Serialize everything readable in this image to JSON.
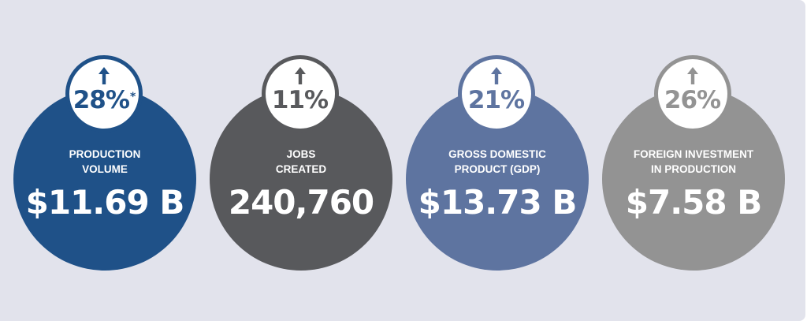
{
  "stats": [
    {
      "change_pct": "28%",
      "footnote_marker": "*",
      "label_line1": "PRODUCTION",
      "label_line2": "VOLUME",
      "value": "$11.69 B",
      "color": "#1f5188",
      "icon": "arrow-up-icon"
    },
    {
      "change_pct": "11%",
      "footnote_marker": "",
      "label_line1": "JOBS",
      "label_line2": "CREATED",
      "value": "240,760",
      "color": "#58595c",
      "icon": "arrow-up-icon"
    },
    {
      "change_pct": "21%",
      "footnote_marker": "",
      "label_line1": "GROSS DOMESTIC",
      "label_line2": "PRODUCT (GDP)",
      "value": "$13.73 B",
      "color": "#5e74a0",
      "icon": "arrow-up-icon"
    },
    {
      "change_pct": "26%",
      "footnote_marker": "",
      "label_line1": "FOREIGN INVESTMENT",
      "label_line2": "IN PRODUCTION",
      "value": "$7.58 B",
      "color": "#939393",
      "icon": "arrow-up-icon"
    }
  ]
}
